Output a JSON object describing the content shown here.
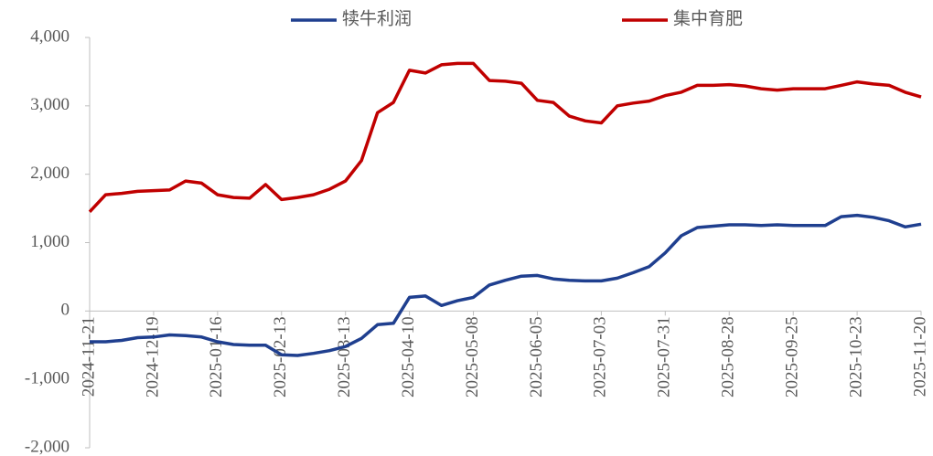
{
  "chart_data": {
    "type": "line",
    "categories": [
      "2024-11-21",
      null,
      null,
      null,
      "2024-12-19",
      null,
      null,
      null,
      "2025-01-16",
      null,
      null,
      null,
      "2025-02-13",
      null,
      null,
      null,
      "2025-03-13",
      null,
      null,
      null,
      "2025-04-10",
      null,
      null,
      null,
      "2025-05-08",
      null,
      null,
      null,
      "2025-06-05",
      null,
      null,
      null,
      "2025-07-03",
      null,
      null,
      null,
      "2025-07-31",
      null,
      null,
      null,
      "2025-08-28",
      null,
      null,
      null,
      "2025-09-25",
      null,
      null,
      null,
      "2025-10-23",
      null,
      null,
      null,
      "2025-11-20"
    ],
    "series": [
      {
        "name": "犊牛利润",
        "color": "#1f3f8f",
        "values": [
          -450,
          -450,
          -430,
          -390,
          -380,
          -350,
          -360,
          -380,
          -450,
          -490,
          -500,
          -500,
          -640,
          -650,
          -620,
          -580,
          -520,
          -400,
          -200,
          -180,
          200,
          220,
          80,
          150,
          200,
          380,
          450,
          510,
          520,
          470,
          450,
          440,
          440,
          480,
          560,
          650,
          850,
          1100,
          1220,
          1240,
          1260,
          1260,
          1250,
          1260,
          1250,
          1250,
          1250,
          1380,
          1400,
          1370,
          1320,
          1230,
          1270
        ]
      },
      {
        "name": "集中育肥",
        "color": "#c00000",
        "values": [
          1450,
          1700,
          1720,
          1750,
          1760,
          1770,
          1900,
          1870,
          1700,
          1660,
          1650,
          1850,
          1630,
          1660,
          1700,
          1780,
          1900,
          2200,
          2900,
          3050,
          3520,
          3480,
          3600,
          3620,
          3620,
          3370,
          3360,
          3330,
          3080,
          3050,
          2850,
          2780,
          2750,
          3000,
          3040,
          3070,
          3150,
          3200,
          3300,
          3300,
          3310,
          3290,
          3250,
          3230,
          3250,
          3250,
          3250,
          3300,
          3350,
          3320,
          3300,
          3200,
          3130
        ]
      }
    ],
    "ylim": [
      -2000,
      4000
    ],
    "yticks": [
      {
        "value": -2000,
        "label": "-2,000"
      },
      {
        "value": -1000,
        "label": "-1,000"
      },
      0,
      {
        "value": 1000,
        "label": "1,000"
      },
      {
        "value": 2000,
        "label": "2,000"
      },
      {
        "value": 3000,
        "label": "3,000"
      },
      {
        "value": 4000,
        "label": "4,000"
      }
    ]
  }
}
